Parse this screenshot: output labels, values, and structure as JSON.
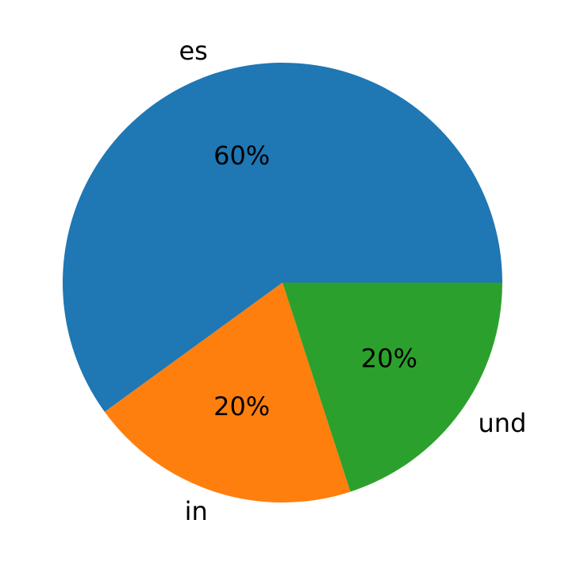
{
  "chart_data": {
    "type": "pie",
    "categories": [
      "es",
      "in",
      "und"
    ],
    "values": [
      60,
      20,
      20
    ],
    "value_labels": [
      "60%",
      "20%",
      "20%"
    ],
    "colors": [
      "#1f77b4",
      "#ff7f0e",
      "#2ca02c"
    ]
  }
}
